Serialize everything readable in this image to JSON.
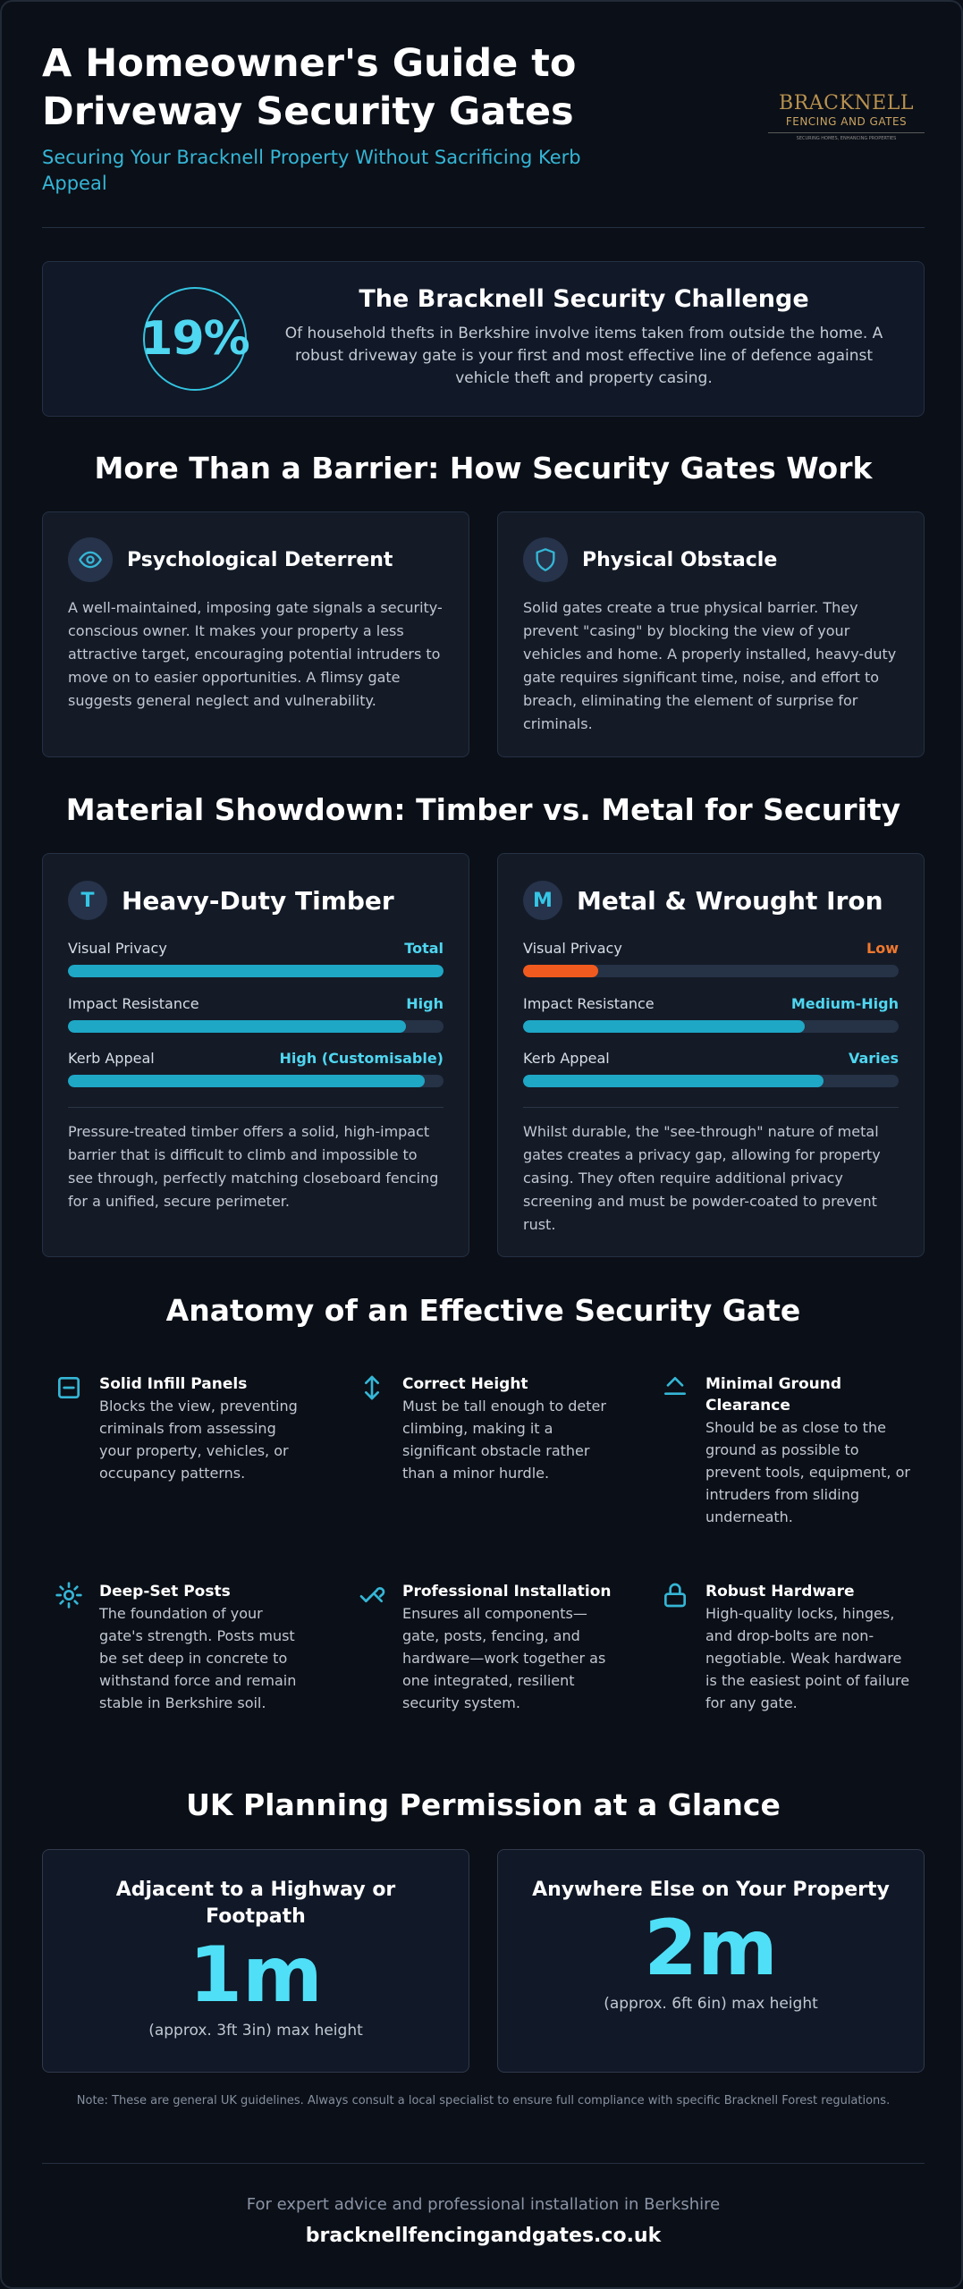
{
  "header": {
    "title": "A Homeowner's Guide to Driveway Security Gates",
    "subtitle": "Securing Your Bracknell Property Without Sacrificing Kerb Appeal",
    "logo": {
      "main": "BRACKNELL",
      "sub": "FENCING AND GATES",
      "tag": "SECURING HOMES, ENHANCING PROPERTIES"
    }
  },
  "challenge": {
    "stat": "19%",
    "title": "The Bracknell Security Challenge",
    "body": "Of household thefts in Berkshire involve items taken from outside the home. A robust driveway gate is your first and most effective line of defence against vehicle theft and property casing."
  },
  "how_it_works": {
    "title": "More Than a Barrier: How Security Gates Work",
    "cards": [
      {
        "icon": "eye-icon",
        "title": "Psychological Deterrent",
        "body": "A well-maintained, imposing gate signals a security-conscious owner. It makes your property a less attractive target, encouraging potential intruders to move on to easier opportunities. A flimsy gate suggests general neglect and vulnerability."
      },
      {
        "icon": "shield-icon",
        "title": "Physical Obstacle",
        "body": "Solid gates create a true physical barrier. They prevent \"casing\" by blocking the view of your vehicles and home. A properly installed, heavy-duty gate requires significant time, noise, and effort to breach, eliminating the element of surprise for criminals."
      }
    ]
  },
  "materials": {
    "title": "Material Showdown: Timber vs. Metal for Security",
    "cards": [
      {
        "letter": "T",
        "title": "Heavy-Duty Timber",
        "metrics": [
          {
            "label": "Visual Privacy",
            "value": "Total",
            "level": 1.0,
            "color": "#1fa7c6"
          },
          {
            "label": "Impact Resistance",
            "value": "High",
            "level": 0.9,
            "color": "#1fa7c6"
          },
          {
            "label": "Kerb Appeal",
            "value": "High (Customisable)",
            "level": 0.95,
            "color": "#1fa7c6"
          }
        ],
        "body": "Pressure-treated timber offers a solid, high-impact barrier that is difficult to climb and impossible to see through, perfectly matching closeboard fencing for a unified, secure perimeter."
      },
      {
        "letter": "M",
        "title": "Metal & Wrought Iron",
        "metrics": [
          {
            "label": "Visual Privacy",
            "value": "Low",
            "level": 0.2,
            "color": "#f15a1e"
          },
          {
            "label": "Impact Resistance",
            "value": "Medium-High",
            "level": 0.75,
            "color": "#1fa7c6"
          },
          {
            "label": "Kerb Appeal",
            "value": "Varies",
            "level": 0.8,
            "color": "#1fa7c6"
          }
        ],
        "body": "Whilst durable, the \"see-through\" nature of metal gates creates a privacy gap, allowing for property casing. They often require additional privacy screening and must be powder-coated to prevent rust."
      }
    ]
  },
  "anatomy": {
    "title": "Anatomy of an Effective Security Gate",
    "features": [
      {
        "icon": "panel-icon",
        "title": "Solid Infill Panels",
        "body": "Blocks the view, preventing criminals from assessing your property, vehicles, or occupancy patterns."
      },
      {
        "icon": "height-arrows-icon",
        "title": "Correct Height",
        "body": "Must be tall enough to deter climbing, making it a significant obstacle rather than a minor hurdle."
      },
      {
        "icon": "ground-clearance-icon",
        "title": "Minimal Ground Clearance",
        "body": "Should be as close to the ground as possible to prevent tools, equipment, or intruders from sliding underneath."
      },
      {
        "icon": "sun-post-icon",
        "title": "Deep-Set Posts",
        "body": "The foundation of your gate's strength. Posts must be set deep in concrete to withstand force and remain stable in Berkshire soil."
      },
      {
        "icon": "tools-icon",
        "title": "Professional Installation",
        "body": "Ensures all components—gate, posts, fencing, and hardware—work together as one integrated, resilient security system."
      },
      {
        "icon": "lock-icon",
        "title": "Robust Hardware",
        "body": "High-quality locks, hinges, and drop-bolts are non-negotiable. Weak hardware is the easiest point of failure for any gate."
      }
    ]
  },
  "planning": {
    "title": "UK Planning Permission at a Glance",
    "cards": [
      {
        "title": "Adjacent to a Highway or Footpath",
        "value": "1m",
        "note": "(approx. 3ft 3in) max height"
      },
      {
        "title": "Anywhere Else on Your Property",
        "value": "2m",
        "note": "(approx. 6ft 6in) max height"
      }
    ],
    "note": "Note: These are general UK guidelines. Always consult a local specialist to ensure full compliance with specific Bracknell Forest regulations."
  },
  "footer": {
    "lead": "For expert advice and professional installation in Berkshire",
    "link": "bracknellfencingandgates.co.uk"
  }
}
